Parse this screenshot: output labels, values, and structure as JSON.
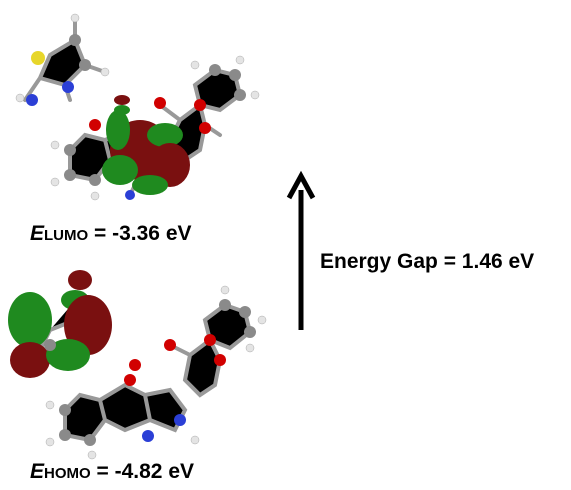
{
  "lumo": {
    "symbol": "E",
    "subscript": "LUMO",
    "text": " = -3.36 eV"
  },
  "homo": {
    "symbol": "E",
    "subscript": "HOMO",
    "text": " = -4.82 eV"
  },
  "energy_gap": "Energy Gap = 1.46 eV"
}
